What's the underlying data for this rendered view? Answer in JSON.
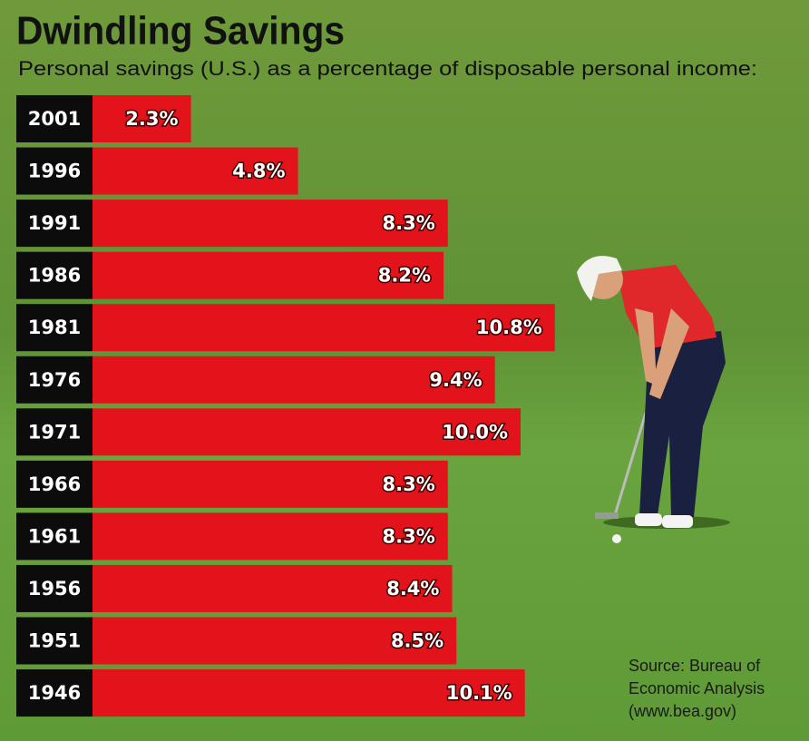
{
  "chart_data": {
    "type": "bar",
    "orientation": "horizontal",
    "title": "Dwindling Savings",
    "subtitle": "Personal savings (U.S.) as a percentage of disposable personal income:",
    "categories": [
      "2001",
      "1996",
      "1991",
      "1986",
      "1981",
      "1976",
      "1971",
      "1966",
      "1961",
      "1956",
      "1951",
      "1946"
    ],
    "values": [
      2.3,
      4.8,
      8.3,
      8.2,
      10.8,
      9.4,
      10.0,
      8.3,
      8.3,
      8.4,
      8.5,
      10.1
    ],
    "value_labels": [
      "2.3%",
      "4.8%",
      "8.3%",
      "8.2%",
      "10.8%",
      "9.4%",
      "10.0%",
      "8.3%",
      "8.3%",
      "8.4%",
      "8.5%",
      "10.1%"
    ],
    "color": "#e3131b",
    "source": [
      "Source: Bureau of",
      "Economic Analysis",
      "(www.bea.gov)"
    ]
  }
}
